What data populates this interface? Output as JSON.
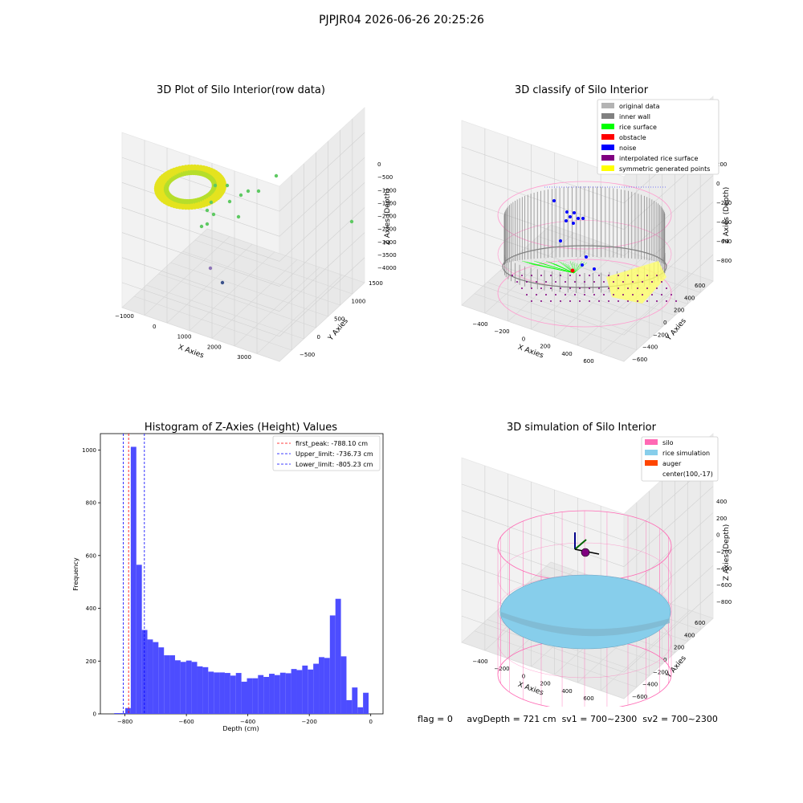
{
  "figure_title": "PJPJR04 2026-06-26 20:25:26",
  "status": {
    "flag": "flag = 0",
    "avg_depth": "avgDepth = 721 cm",
    "sv1": "sv1 = 700~2300",
    "sv2": "sv2 = 700~2300"
  },
  "chart_data": [
    {
      "type": "scatter",
      "title": "3D Plot of Silo Interior(row data)",
      "xlabel": "X Axies",
      "ylabel": "Y Axies",
      "zlabel": "Z Axies (Depth)",
      "x_ticks": [
        "−1000",
        "0",
        "1000",
        "2000",
        "3000"
      ],
      "y_ticks": [
        "−500",
        "0",
        "500",
        "1000",
        "1500"
      ],
      "z_ticks": [
        "0",
        "−500",
        "−1000",
        "−1500",
        "−2000",
        "−2500",
        "−3000",
        "−3500",
        "−4000"
      ],
      "colors": {
        "ring": "#e4e31f",
        "ring_inner": "#b6de2b",
        "outliers": "#5ec962",
        "deep": "#3b528b"
      }
    },
    {
      "type": "scatter",
      "title": "3D classify of Silo Interior",
      "xlabel": "X Axies",
      "ylabel": "Y Axies",
      "zlabel": "Z Axies (Depth)",
      "x_ticks": [
        "−400",
        "−200",
        "0",
        "200",
        "400",
        "600"
      ],
      "y_ticks": [
        "−600",
        "−400",
        "−200",
        "0",
        "200",
        "400",
        "600"
      ],
      "z_ticks": [
        "200",
        "0",
        "−200",
        "−400",
        "−600",
        "−800"
      ],
      "legend": [
        {
          "label": "original data",
          "color": "#b3b3b3"
        },
        {
          "label": "inner wall",
          "color": "#808080"
        },
        {
          "label": "rice surface",
          "color": "#00ff00"
        },
        {
          "label": "obstacle",
          "color": "#ff0000"
        },
        {
          "label": "noise",
          "color": "#0000ff"
        },
        {
          "label": "interpolated rice surface",
          "color": "#800080"
        },
        {
          "label": "symmetric generated points",
          "color": "#ffff00"
        }
      ]
    },
    {
      "type": "bar",
      "title": "Histogram of Z-Axies (Height) Values",
      "xlabel": "Depth (cm)",
      "ylabel": "Frequency",
      "xlim": [
        -880,
        40
      ],
      "ylim": [
        0,
        1062
      ],
      "x_ticks": [
        {
          "value": -800,
          "label": "−800"
        },
        {
          "value": -600,
          "label": "−600"
        },
        {
          "value": -400,
          "label": "−400"
        },
        {
          "value": -200,
          "label": "−200"
        },
        {
          "value": 0,
          "label": "0"
        }
      ],
      "y_ticks": [
        {
          "value": 0,
          "label": "0"
        },
        {
          "value": 200,
          "label": "200"
        },
        {
          "value": 400,
          "label": "400"
        },
        {
          "value": 600,
          "label": "600"
        },
        {
          "value": 800,
          "label": "800"
        },
        {
          "value": 1000,
          "label": "1000"
        }
      ],
      "bar_color": "#4d4dff",
      "bin_starts": [
        -835,
        -817,
        -799,
        -781,
        -763,
        -745,
        -727,
        -709,
        -691,
        -673,
        -655,
        -637,
        -619,
        -601,
        -583,
        -565,
        -547,
        -529,
        -511,
        -493,
        -475,
        -457,
        -439,
        -421,
        -403,
        -385,
        -367,
        -349,
        -331,
        -313,
        -295,
        -277,
        -259,
        -241,
        -223,
        -205,
        -187,
        -169,
        -151,
        -133,
        -115,
        -97,
        -79,
        -61,
        -43,
        -25,
        -7
      ],
      "bin_width": 18,
      "counts": [
        3,
        3,
        22,
        1012,
        565,
        318,
        282,
        272,
        252,
        222,
        222,
        203,
        197,
        202,
        197,
        180,
        177,
        160,
        157,
        157,
        155,
        145,
        155,
        122,
        135,
        135,
        147,
        140,
        152,
        147,
        156,
        154,
        170,
        166,
        183,
        168,
        190,
        215,
        212,
        373,
        436,
        218,
        52,
        100,
        25,
        80,
        0
      ],
      "vlines": [
        {
          "label": "first_peak: -788.10 cm",
          "x": -788.1,
          "color": "#ff0000"
        },
        {
          "label": "Upper_limit: -736.73 cm",
          "x": -736.73,
          "color": "#0000ff"
        },
        {
          "label": "Lower_limit: -805.23 cm",
          "x": -805.23,
          "color": "#0000ff"
        }
      ]
    },
    {
      "type": "scatter",
      "title": "3D simulation of Silo Interior",
      "xlabel": "X Axies",
      "ylabel": "Y Axies",
      "zlabel": "Z Axies (Depth)",
      "x_ticks": [
        "−400",
        "−200",
        "0",
        "200",
        "400",
        "600"
      ],
      "y_ticks": [
        "−600",
        "−400",
        "−200",
        "0",
        "200",
        "400",
        "600"
      ],
      "z_ticks": [
        "400",
        "200",
        "0",
        "−200",
        "−400",
        "−600",
        "−800"
      ],
      "legend": [
        {
          "label": "silo",
          "color": "#ff69b4"
        },
        {
          "label": "rice simulation",
          "color": "#87ceeb"
        },
        {
          "label": "auger",
          "color": "#ff4500"
        },
        {
          "label": "center(100,-17)",
          "color": ""
        }
      ]
    }
  ]
}
